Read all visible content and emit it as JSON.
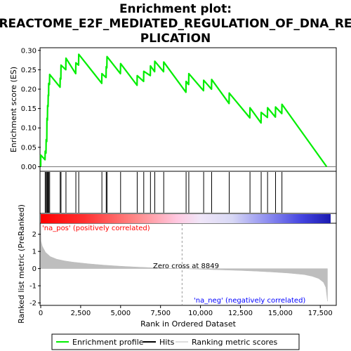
{
  "chart_data": {
    "type": "line",
    "title_lines": [
      "Enrichment plot:",
      "REACTOME_E2F_MEDIATED_REGULATION_OF_DNA_RE",
      "PLICATION"
    ],
    "xlabel": "Rank in Ordered Dataset",
    "ylabel_top": "Enrichment score (ES)",
    "ylabel_bottom": "Ranked list metric (PreRanked)",
    "xlim": [
      0,
      18500
    ],
    "x_ticks": [
      0,
      2500,
      5000,
      7500,
      10000,
      12500,
      15000,
      17500
    ],
    "x_tick_labels": [
      "0",
      "2,500",
      "5,000",
      "7,500",
      "10,000",
      "12,500",
      "15,000",
      "17,500"
    ],
    "es_ylim": [
      -0.01,
      0.305
    ],
    "es_y_ticks": [
      0.0,
      0.05,
      0.1,
      0.15,
      0.2,
      0.25,
      0.3
    ],
    "es_y_tick_labels": [
      "0.00",
      "0.05",
      "0.10",
      "0.15",
      "0.20",
      "0.25",
      "0.30"
    ],
    "metric_ylim": [
      -2.1,
      2.6
    ],
    "metric_y_ticks": [
      2,
      1,
      0,
      -1,
      -2
    ],
    "metric_y_tick_labels": [
      "2",
      "1",
      "0",
      "-1",
      "-2"
    ],
    "hits": [
      280,
      340,
      390,
      430,
      470,
      500,
      560,
      1220,
      1270,
      1580,
      2200,
      2380,
      3830,
      4100,
      4150,
      5000,
      6040,
      6450,
      6870,
      7140,
      7700,
      9100,
      9270,
      10200,
      10700,
      11800,
      13100,
      13800,
      14200,
      14700,
      15100
    ],
    "es_curve": [
      [
        0,
        0.0
      ],
      [
        1,
        0.03
      ],
      [
        270,
        0.018
      ],
      [
        280,
        0.04
      ],
      [
        330,
        0.035
      ],
      [
        340,
        0.07
      ],
      [
        380,
        0.065
      ],
      [
        390,
        0.125
      ],
      [
        420,
        0.12
      ],
      [
        430,
        0.158
      ],
      [
        460,
        0.155
      ],
      [
        470,
        0.185
      ],
      [
        495,
        0.183
      ],
      [
        500,
        0.215
      ],
      [
        550,
        0.212
      ],
      [
        560,
        0.238
      ],
      [
        1210,
        0.205
      ],
      [
        1220,
        0.228
      ],
      [
        1260,
        0.226
      ],
      [
        1270,
        0.262
      ],
      [
        1570,
        0.25
      ],
      [
        1580,
        0.28
      ],
      [
        2190,
        0.24
      ],
      [
        2200,
        0.268
      ],
      [
        2370,
        0.262
      ],
      [
        2380,
        0.29
      ],
      [
        3820,
        0.215
      ],
      [
        3830,
        0.24
      ],
      [
        4090,
        0.23
      ],
      [
        4100,
        0.258
      ],
      [
        4140,
        0.255
      ],
      [
        4150,
        0.284
      ],
      [
        4990,
        0.24
      ],
      [
        5000,
        0.266
      ],
      [
        6030,
        0.21
      ],
      [
        6040,
        0.235
      ],
      [
        6440,
        0.22
      ],
      [
        6450,
        0.246
      ],
      [
        6860,
        0.235
      ],
      [
        6870,
        0.26
      ],
      [
        7130,
        0.245
      ],
      [
        7140,
        0.272
      ],
      [
        7690,
        0.245
      ],
      [
        7700,
        0.27
      ],
      [
        9090,
        0.192
      ],
      [
        9100,
        0.22
      ],
      [
        9260,
        0.212
      ],
      [
        9270,
        0.24
      ],
      [
        10190,
        0.196
      ],
      [
        10200,
        0.223
      ],
      [
        10690,
        0.2
      ],
      [
        10700,
        0.225
      ],
      [
        11790,
        0.163
      ],
      [
        11800,
        0.19
      ],
      [
        13090,
        0.126
      ],
      [
        13100,
        0.152
      ],
      [
        13790,
        0.113
      ],
      [
        13800,
        0.14
      ],
      [
        14190,
        0.127
      ],
      [
        14200,
        0.152
      ],
      [
        14690,
        0.128
      ],
      [
        14700,
        0.154
      ],
      [
        15090,
        0.137
      ],
      [
        15100,
        0.161
      ],
      [
        17900,
        0.0
      ]
    ],
    "metric_curve": [
      [
        0,
        2.6
      ],
      [
        20,
        1.6
      ],
      [
        100,
        1.3
      ],
      [
        300,
        0.95
      ],
      [
        600,
        0.7
      ],
      [
        1000,
        0.55
      ],
      [
        1500,
        0.45
      ],
      [
        2000,
        0.38
      ],
      [
        3000,
        0.28
      ],
      [
        4000,
        0.2
      ],
      [
        5000,
        0.14
      ],
      [
        6000,
        0.09
      ],
      [
        7000,
        0.05
      ],
      [
        8000,
        0.02
      ],
      [
        8849,
        0.0
      ],
      [
        9500,
        -0.02
      ],
      [
        10500,
        -0.05
      ],
      [
        11500,
        -0.08
      ],
      [
        12500,
        -0.11
      ],
      [
        13500,
        -0.15
      ],
      [
        14500,
        -0.2
      ],
      [
        15500,
        -0.26
      ],
      [
        16500,
        -0.35
      ],
      [
        17000,
        -0.45
      ],
      [
        17400,
        -0.58
      ],
      [
        17700,
        -0.8
      ],
      [
        17850,
        -1.1
      ],
      [
        17950,
        -1.9
      ]
    ],
    "zero_cross_label": "Zero cross at 8849",
    "zero_cross_value": 8849,
    "pos_label": "'na_pos' (positively correlated)",
    "neg_label": "'na_neg' (negatively correlated)",
    "colors": {
      "es_line": "#00ee00",
      "hit": "#000000",
      "metric_fill": "#bebebe",
      "pos_text": "#ff0000",
      "neg_text": "#0000ff",
      "zero_line": "#999999"
    },
    "legend": [
      {
        "label": "Enrichment profile",
        "style": "line",
        "color": "#00ee00"
      },
      {
        "label": "Hits",
        "style": "line",
        "color": "#000000"
      },
      {
        "label": "Ranking metric scores",
        "style": "line",
        "color": "#bebebe"
      }
    ]
  }
}
